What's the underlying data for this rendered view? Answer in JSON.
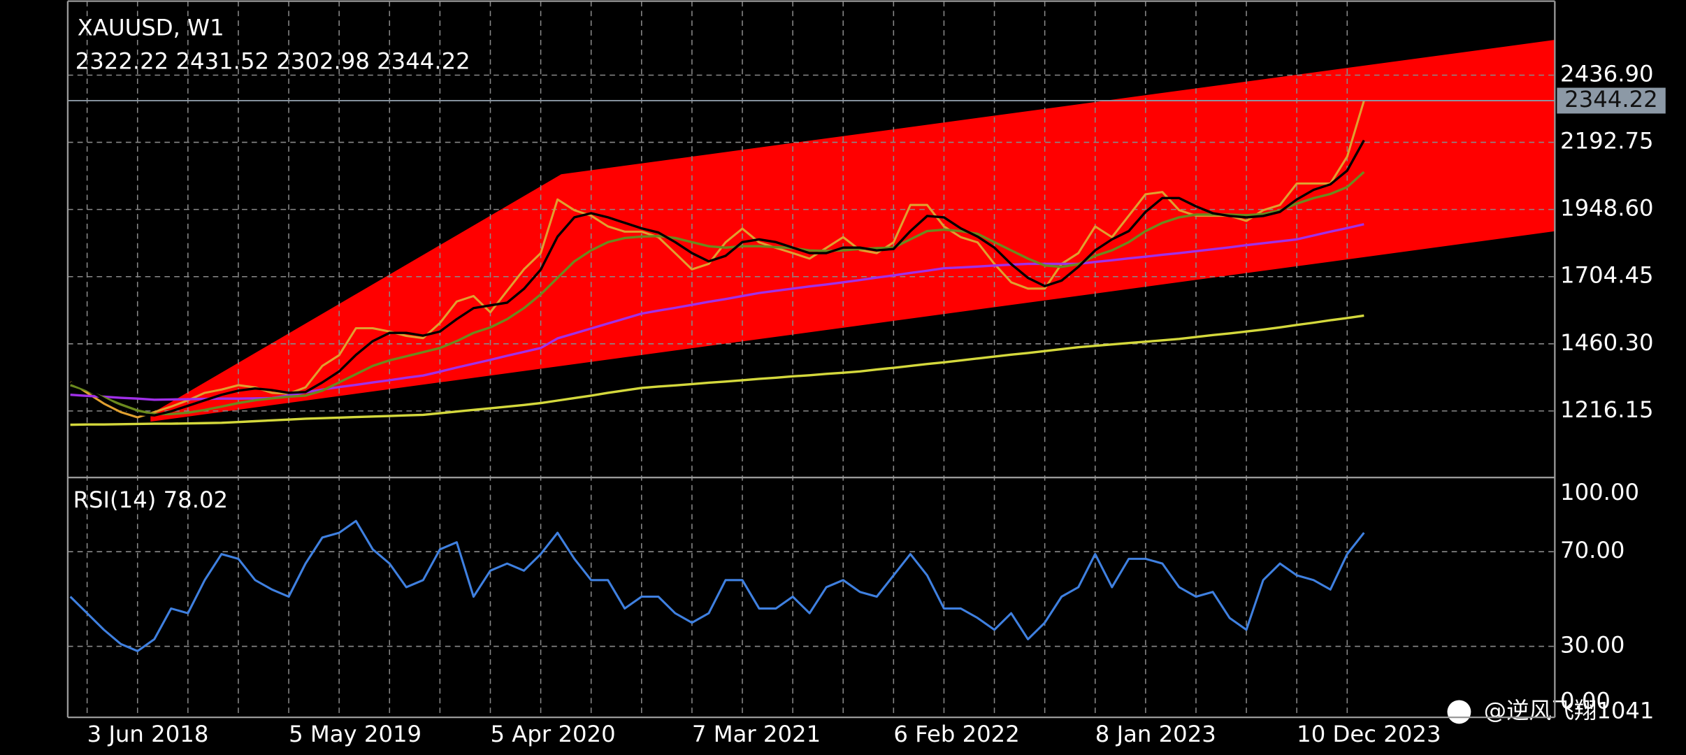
{
  "chart_data": [
    {
      "type": "line",
      "title": "XAUUSD, W1",
      "subtitle": "2322.22 2431.52 2302.98 2344.22",
      "categories": [
        null,
        "3 Jun 2018",
        null,
        null,
        null,
        null,
        null,
        null,
        null,
        null,
        null,
        null,
        null,
        "5 May 2019",
        null,
        null,
        null,
        null,
        null,
        null,
        null,
        null,
        null,
        null,
        null,
        "5 Apr 2020",
        null,
        null,
        null,
        null,
        null,
        null,
        null,
        null,
        null,
        null,
        null,
        "7 Mar 2021",
        null,
        null,
        null,
        null,
        null,
        null,
        null,
        null,
        null,
        null,
        null,
        "6 Feb 2022",
        null,
        null,
        null,
        null,
        null,
        null,
        null,
        null,
        null,
        null,
        null,
        "8 Jan 2023",
        null,
        null,
        null,
        null,
        null,
        null,
        null,
        null,
        null,
        null,
        null,
        "10 Dec 2023",
        null,
        null,
        null,
        null
      ],
      "series": [
        {
          "color": "#e0a030",
          "values": [
            1322,
            1282,
            1243,
            1212,
            1193,
            1212,
            1232,
            1255,
            1282,
            1294,
            1310,
            1302,
            1282,
            1279,
            1302,
            1380,
            1419,
            1517,
            1517,
            1505,
            1489,
            1481,
            1536,
            1614,
            1634,
            1575,
            1653,
            1731,
            1790,
            1985,
            1946,
            1926,
            1887,
            1868,
            1868,
            1848,
            1790,
            1731,
            1751,
            1829,
            1879,
            1829,
            1809,
            1790,
            1770,
            1809,
            1848,
            1801,
            1790,
            1829,
            1965,
            1965,
            1887,
            1848,
            1829,
            1751,
            1684,
            1661,
            1661,
            1751,
            1790,
            1887,
            1848,
            1926,
            2004,
            2012,
            1946,
            1926,
            1926,
            1926,
            1907,
            1946,
            1965,
            2043,
            2043,
            2043,
            2141,
            2344.22
          ]
        },
        {
          "color": "#d4d83c",
          "values": [
            1166,
            1167,
            1167,
            1168,
            1169,
            1170,
            1170,
            1171,
            1172,
            1173,
            1176,
            1179,
            1182,
            1185,
            1188,
            1190,
            1192,
            1194,
            1196,
            1198,
            1200,
            1202,
            1208,
            1214,
            1220,
            1226,
            1232,
            1238,
            1245,
            1254,
            1263,
            1272,
            1282,
            1291,
            1300,
            1305,
            1309,
            1314,
            1319,
            1323,
            1328,
            1333,
            1337,
            1342,
            1346,
            1351,
            1355,
            1360,
            1367,
            1373,
            1380,
            1387,
            1393,
            1400,
            1407,
            1414,
            1421,
            1427,
            1434,
            1441,
            1448,
            1453,
            1458,
            1463,
            1468,
            1473,
            1478,
            1485,
            1492,
            1498,
            1505,
            1512,
            1520,
            1529,
            1537,
            1546,
            1554,
            1563
          ]
        },
        {
          "color": "#a030e8",
          "values": [
            1275,
            1271,
            1268,
            1264,
            1261,
            1257,
            1258,
            1259,
            1260,
            1261,
            1261,
            1262,
            1263,
            1273,
            1284,
            1294,
            1303,
            1311,
            1320,
            1328,
            1337,
            1345,
            1359,
            1374,
            1388,
            1402,
            1417,
            1431,
            1445,
            1480,
            1498,
            1516,
            1534,
            1552,
            1570,
            1581,
            1591,
            1602,
            1613,
            1623,
            1634,
            1645,
            1653,
            1661,
            1669,
            1676,
            1684,
            1692,
            1701,
            1709,
            1718,
            1726,
            1735,
            1738,
            1741,
            1745,
            1748,
            1751,
            1751,
            1751,
            1751,
            1758,
            1764,
            1771,
            1777,
            1784,
            1790,
            1797,
            1804,
            1811,
            1819,
            1826,
            1833,
            1840,
            1854,
            1868,
            1881,
            1895
          ]
        },
        {
          "color": "#6b8a1e",
          "values": [
            1310,
            1290,
            1265,
            1240,
            1218,
            1205,
            1205,
            1210,
            1220,
            1232,
            1245,
            1255,
            1262,
            1268,
            1272,
            1290,
            1320,
            1350,
            1380,
            1400,
            1415,
            1430,
            1445,
            1470,
            1500,
            1520,
            1550,
            1590,
            1640,
            1700,
            1760,
            1800,
            1830,
            1845,
            1850,
            1852,
            1845,
            1830,
            1815,
            1810,
            1815,
            1815,
            1812,
            1808,
            1800,
            1798,
            1800,
            1805,
            1808,
            1810,
            1840,
            1870,
            1875,
            1870,
            1860,
            1830,
            1800,
            1770,
            1745,
            1740,
            1750,
            1780,
            1800,
            1830,
            1870,
            1900,
            1920,
            1930,
            1930,
            1930,
            1928,
            1932,
            1945,
            1970,
            1990,
            2005,
            2030,
            2085
          ]
        },
        {
          "color": "#000000",
          "values": [
            1320,
            1295,
            1260,
            1228,
            1205,
            1200,
            1215,
            1235,
            1255,
            1275,
            1290,
            1298,
            1292,
            1282,
            1285,
            1320,
            1360,
            1420,
            1470,
            1500,
            1500,
            1490,
            1505,
            1550,
            1590,
            1600,
            1610,
            1660,
            1730,
            1850,
            1920,
            1935,
            1920,
            1900,
            1880,
            1865,
            1830,
            1790,
            1760,
            1780,
            1830,
            1840,
            1830,
            1810,
            1790,
            1790,
            1810,
            1810,
            1800,
            1805,
            1870,
            1925,
            1920,
            1880,
            1850,
            1810,
            1750,
            1700,
            1670,
            1690,
            1740,
            1800,
            1840,
            1870,
            1940,
            1990,
            1990,
            1960,
            1935,
            1925,
            1920,
            1925,
            1940,
            1985,
            2020,
            2040,
            2090,
            2200
          ]
        }
      ],
      "ylim": [
        978.2,
        2706.0
      ],
      "yticks": [
        1216.15,
        {
          "value": 1460.3,
          "label": "1460.30"
        },
        1704.45,
        {
          "value": 1948.6,
          "label": "1948.60"
        },
        2192.75,
        {
          "value": 2436.9,
          "label": "2436.90"
        }
      ],
      "last_price": 2344.22,
      "grid": true
    },
    {
      "type": "line",
      "title": "RSI(14) 78.02",
      "series": [
        {
          "color": "#3f80e0",
          "values": [
            51,
            44,
            37,
            31,
            28,
            33,
            46,
            44,
            58,
            69,
            67,
            58,
            54,
            51,
            65,
            76,
            78,
            83,
            71,
            65,
            55,
            58,
            71,
            74,
            51,
            62,
            65,
            62,
            69,
            78,
            67,
            58,
            58,
            46,
            51,
            51,
            44,
            40,
            44,
            58,
            58,
            46,
            46,
            51,
            44,
            55,
            58,
            53,
            51,
            60,
            69,
            60,
            46,
            46,
            42,
            37,
            44,
            33,
            40,
            51,
            55,
            69,
            55,
            67,
            67,
            65,
            55,
            51,
            53,
            42,
            37,
            58,
            65,
            60,
            58,
            54,
            69,
            78.02
          ]
        }
      ],
      "ylim": [
        0,
        100
      ],
      "yticks": [
        {
          "value": 0,
          "label": "0.00"
        },
        {
          "value": 30,
          "label": "30.00"
        },
        {
          "value": 70,
          "label": "70.00"
        },
        {
          "value": 100,
          "label": "100.00"
        }
      ],
      "grid": true
    }
  ],
  "watermark": "@逆风飞翔1041"
}
